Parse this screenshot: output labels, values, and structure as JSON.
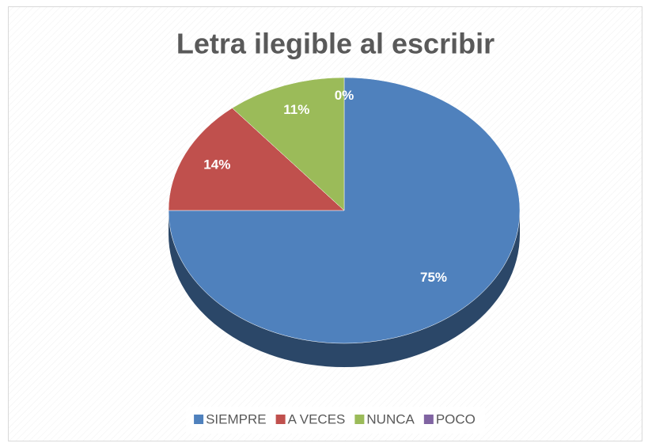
{
  "chart_data": {
    "type": "pie",
    "title": "Letra ilegible al escribir",
    "categories": [
      "SIEMPRE",
      "A VECES",
      "NUNCA",
      "POCO"
    ],
    "values": [
      75,
      14,
      11,
      0
    ],
    "value_labels": [
      "75%",
      "14%",
      "11%",
      "0%"
    ],
    "colors": [
      "#4f81bd",
      "#c0504d",
      "#9bbb59",
      "#8064a2"
    ],
    "legend": "bottom"
  }
}
